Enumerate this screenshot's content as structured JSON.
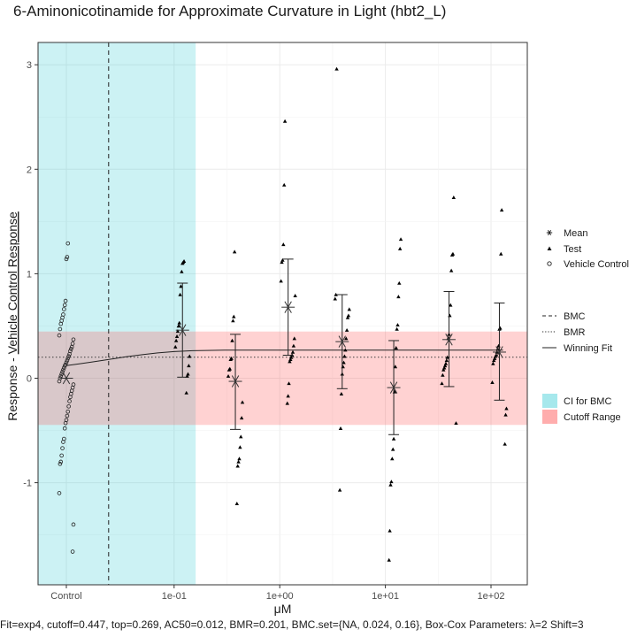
{
  "title": "6-Aminonicotinamide for Approximate Curvature in Light (hbt2_L)",
  "caption": "Fit=exp4, cutoff=0.447, top=0.269, AC50=0.012, BMR=0.201, BMC.set={NA, 0.024, 0.16}, Box-Cox Parameters: λ=2 Shift=3",
  "colors": {
    "ci_fill": "#00bcc8",
    "cutoff_fill": "#ff4a4a",
    "panel_border": "#333333",
    "grid": "#ebebeb",
    "points": "#000000"
  },
  "chart_data": {
    "type": "scatter",
    "title": "6-Aminonicotinamide for Approximate Curvature in Light (hbt2_L)",
    "xlabel": "μM",
    "ylabel_numerator": "Response",
    "ylabel_denominator": "Vehicle Control Response",
    "ylabel_separator": " - ",
    "x_scale": "log10 with Control position",
    "x_ticks": [
      "Control",
      "1e-01",
      "1e+00",
      "1e+01",
      "1e+02"
    ],
    "y_ticks": [
      -1,
      0,
      1,
      2,
      3
    ],
    "ylim": [
      -1.98,
      3.21
    ],
    "grid": true,
    "ci_bmc": [
      0.024,
      0.16
    ],
    "cutoff_band": [
      -0.447,
      0.447
    ],
    "bmc": 0.024,
    "bmr": 0.201,
    "winning_fit": {
      "model": "exp4",
      "top": 0.269,
      "ac50": 0.012,
      "x": [
        0.0095,
        0.012,
        0.016,
        0.021,
        0.028,
        0.035,
        0.05,
        0.07,
        0.1,
        0.15,
        0.2,
        0.3,
        0.5,
        1.0,
        2.0,
        5.0,
        10,
        20,
        50,
        100,
        130
      ],
      "y": [
        0.12,
        0.135,
        0.152,
        0.17,
        0.19,
        0.205,
        0.225,
        0.242,
        0.255,
        0.263,
        0.266,
        0.268,
        0.269,
        0.269,
        0.269,
        0.269,
        0.269,
        0.269,
        0.269,
        0.269,
        0.269
      ]
    },
    "vehicle_control": {
      "label": "Control",
      "values": [
        1.29,
        1.16,
        1.14,
        0.74,
        0.7,
        0.66,
        0.61,
        0.58,
        0.55,
        0.52,
        0.47,
        0.41,
        0.37,
        0.33,
        0.3,
        0.28,
        0.26,
        0.23,
        0.21,
        0.19,
        0.17,
        0.15,
        0.13,
        0.12,
        0.1,
        0.08,
        0.06,
        0.04,
        0.02,
        0.0,
        -0.03,
        -0.06,
        -0.09,
        -0.12,
        -0.15,
        -0.18,
        -0.22,
        -0.27,
        -0.32,
        -0.36,
        -0.4,
        -0.43,
        -0.48,
        -0.58,
        -0.61,
        -0.67,
        -0.74,
        -0.8,
        -0.82,
        -1.1,
        -1.4,
        -1.66
      ],
      "mean": 0.0
    },
    "test_groups": [
      {
        "conc": 0.12,
        "mean": 0.46,
        "err_low": 0.01,
        "err_high": 0.91,
        "values": [
          1.12,
          1.11,
          1.1,
          1.02,
          0.88,
          0.8,
          0.53,
          0.5,
          0.45,
          0.4,
          0.36,
          0.3,
          0.21,
          0.12,
          0.04,
          0.02,
          -0.14
        ]
      },
      {
        "conc": 0.38,
        "mean": -0.03,
        "err_low": -0.49,
        "err_high": 0.42,
        "values": [
          1.21,
          0.59,
          0.55,
          0.36,
          0.19,
          0.18,
          0.09,
          0.08,
          0.02,
          -0.23,
          -0.38,
          -0.56,
          -0.66,
          -0.77,
          -0.8,
          -0.84,
          -1.2
        ]
      },
      {
        "conc": 1.2,
        "mean": 0.68,
        "err_low": 0.22,
        "err_high": 1.14,
        "values": [
          2.46,
          1.85,
          1.28,
          1.13,
          1.11,
          0.93,
          0.79,
          0.38,
          0.31,
          0.25,
          0.22,
          0.2,
          0.18,
          0.16,
          -0.05,
          -0.17,
          -0.24
        ]
      },
      {
        "conc": 3.9,
        "mean": 0.35,
        "err_low": -0.1,
        "err_high": 0.8,
        "values": [
          2.96,
          0.8,
          0.76,
          0.66,
          0.6,
          0.58,
          0.46,
          0.38,
          0.27,
          0.21,
          0.15,
          0.11,
          0.04,
          -0.15,
          -0.48,
          -1.07
        ]
      },
      {
        "conc": 12,
        "mean": -0.09,
        "err_low": -0.54,
        "err_high": 0.36,
        "values": [
          1.33,
          1.24,
          0.91,
          0.78,
          0.51,
          0.47,
          0.29,
          0.11,
          -0.13,
          -0.58,
          -0.68,
          -0.77,
          -0.99,
          -1.02,
          -1.46,
          -1.74
        ]
      },
      {
        "conc": 40,
        "mean": 0.37,
        "err_low": -0.08,
        "err_high": 0.83,
        "values": [
          1.73,
          1.19,
          1.18,
          1.03,
          0.7,
          0.6,
          0.42,
          0.38,
          0.2,
          0.17,
          0.14,
          0.12,
          0.1,
          0.08,
          0.03,
          -0.05,
          -0.43
        ]
      },
      {
        "conc": 120,
        "mean": 0.25,
        "err_low": -0.21,
        "err_high": 0.72,
        "values": [
          1.61,
          1.19,
          0.48,
          0.47,
          0.31,
          0.28,
          0.25,
          0.22,
          0.21,
          0.19,
          0.17,
          0.14,
          -0.04,
          -0.29,
          -0.35,
          -0.63
        ]
      }
    ],
    "legend_shapes": [
      {
        "label": "Mean",
        "icon": "asterisk"
      },
      {
        "label": "Test",
        "icon": "triangle"
      },
      {
        "label": "Vehicle Control",
        "icon": "open-circle"
      }
    ],
    "legend_lines": [
      {
        "label": "BMC",
        "dash": "dashed"
      },
      {
        "label": "BMR",
        "dash": "dotted"
      },
      {
        "label": "Winning Fit",
        "dash": "solid"
      }
    ],
    "legend_fills": [
      {
        "label": "CI for BMC",
        "color": "#00bcc8"
      },
      {
        "label": "Cutoff Range",
        "color": "#ff4a4a"
      }
    ],
    "legend_position": "right"
  }
}
